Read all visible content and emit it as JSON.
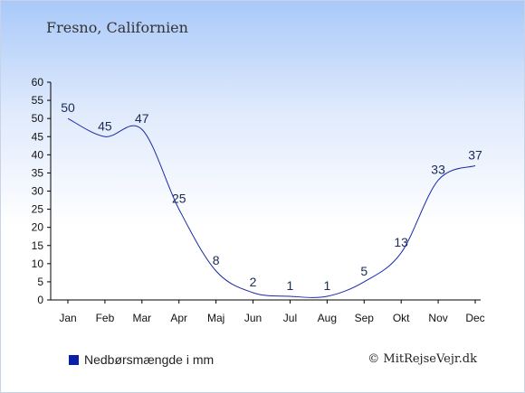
{
  "title": "Fresno, Californien",
  "legend_label": "Nedbørsmængde i mm",
  "credit": "© MitRejseVejr.dk",
  "colors": {
    "line": "#1a2aa8",
    "label": "#1a2b55",
    "axis": "#000000",
    "legend_swatch": "#0a1fa8"
  },
  "chart_data": {
    "type": "line",
    "title": "Fresno, Californien",
    "categories": [
      "Jan",
      "Feb",
      "Mar",
      "Apr",
      "Maj",
      "Jun",
      "Jul",
      "Aug",
      "Sep",
      "Okt",
      "Nov",
      "Dec"
    ],
    "series": [
      {
        "name": "Nedbørsmængde i mm",
        "values": [
          50,
          45,
          47,
          25,
          8,
          2,
          1,
          1,
          5,
          13,
          33,
          37
        ]
      }
    ],
    "ylim": [
      0,
      60
    ],
    "yticks": [
      0,
      5,
      10,
      15,
      20,
      25,
      30,
      35,
      40,
      45,
      50,
      55,
      60
    ],
    "grid": false,
    "legend_position": "bottom-left",
    "xlabel": "",
    "ylabel": ""
  }
}
